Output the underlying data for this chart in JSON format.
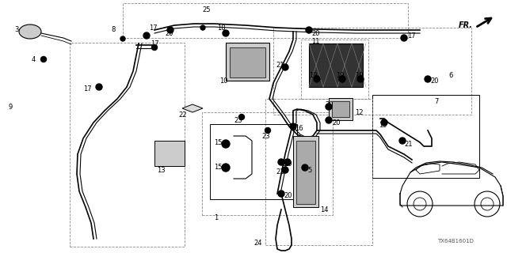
{
  "bg_color": "#ffffff",
  "diagram_id": "TX64B1601D",
  "line_color": "#000000",
  "gray_color": "#888888",
  "label_fontsize": 6.0
}
